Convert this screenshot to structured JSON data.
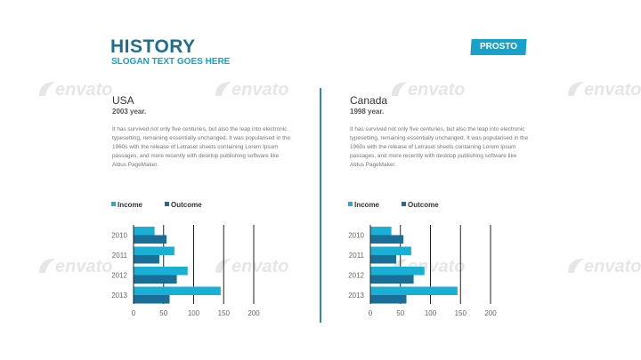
{
  "header": {
    "title": "HISTORY",
    "subtitle": "SLOGAN TEXT GOES HERE",
    "logo": "PROSTO"
  },
  "watermark": {
    "text": "envato"
  },
  "columns": [
    {
      "title": "USA",
      "year": "2003 year.",
      "body": "It has survived not only five centuries, but also the leap into electronic typesetting, remaining essentially unchanged. It was popularised in the 1960s with the release of Letraset sheets containing Lorem Ipsum passages, and more recently with desktop publishing software like Aldus PageMaker."
    },
    {
      "title": "Canada",
      "year": "1998 year.",
      "body": "It has survived not only five centuries, but also the leap into electronic typesetting, remaining essentially unchanged. It was popularised in the 1960s with the release of Letraset sheets containing Lorem Ipsum passages, and more recently with desktop publishing software like Aldus PageMaker."
    }
  ],
  "colors": {
    "income": "#1ab0d6",
    "outcome": "#1a6e97",
    "accent": "#1e6f8e"
  },
  "chart_data": [
    {
      "type": "bar",
      "orientation": "horizontal",
      "categories": [
        "2010",
        "2011",
        "2012",
        "2013"
      ],
      "series": [
        {
          "name": "Income",
          "values": [
            35,
            68,
            90,
            145
          ]
        },
        {
          "name": "Outcome",
          "values": [
            55,
            43,
            72,
            60
          ]
        }
      ],
      "xticks": [
        "0",
        "50",
        "100",
        "150",
        "200"
      ],
      "xlim": [
        0,
        200
      ],
      "legend": "top-left",
      "grid": true
    },
    {
      "type": "bar",
      "orientation": "horizontal",
      "categories": [
        "2010",
        "2011",
        "2012",
        "2013"
      ],
      "series": [
        {
          "name": "Income",
          "values": [
            35,
            68,
            90,
            145
          ]
        },
        {
          "name": "Outcome",
          "values": [
            55,
            43,
            72,
            60
          ]
        }
      ],
      "xticks": [
        "0",
        "50",
        "100",
        "150",
        "200"
      ],
      "xlim": [
        0,
        200
      ],
      "legend": "top-left",
      "grid": true
    }
  ]
}
